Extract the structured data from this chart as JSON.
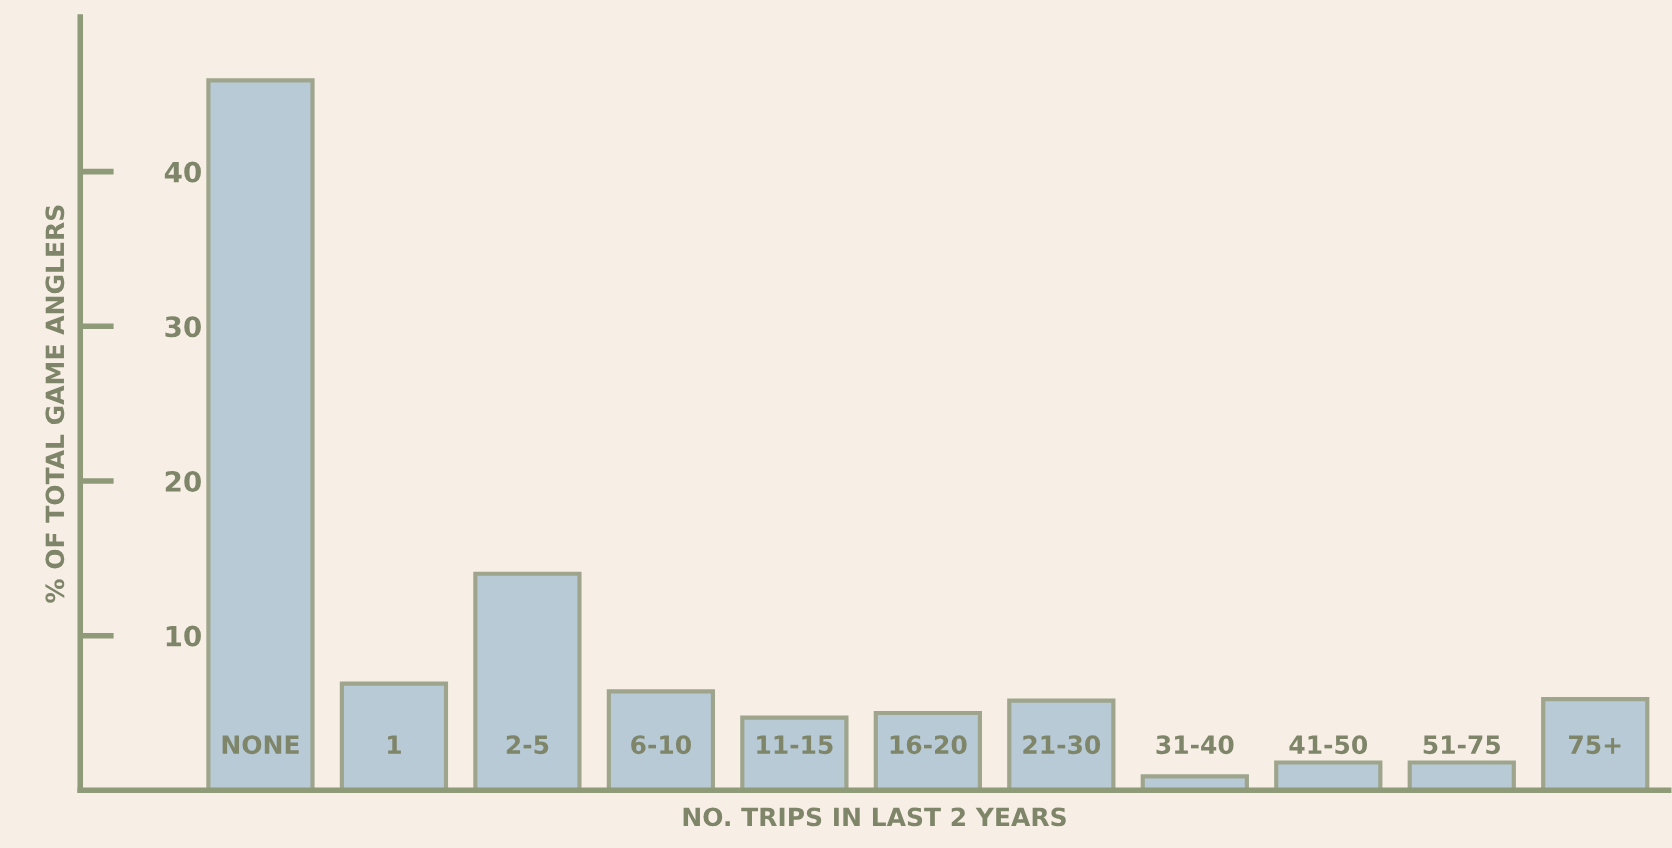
{
  "chart_data": {
    "type": "bar",
    "xlabel": "NO. TRIPS IN LAST 2 YEARS",
    "ylabel": "% OF TOTAL GAME ANGLERS",
    "categories": [
      "NONE",
      "1",
      "2-5",
      "6-10",
      "11-15",
      "16-20",
      "21-30",
      "31-40",
      "41-50",
      "51-75",
      "75+"
    ],
    "values": [
      45.9,
      6.9,
      14.0,
      6.4,
      4.7,
      5.0,
      5.8,
      0.9,
      1.8,
      1.8,
      5.9
    ],
    "color": "#b7cad6",
    "ylim": [
      0,
      50
    ],
    "yticks": [
      10,
      20,
      30,
      40
    ],
    "grid": false
  }
}
